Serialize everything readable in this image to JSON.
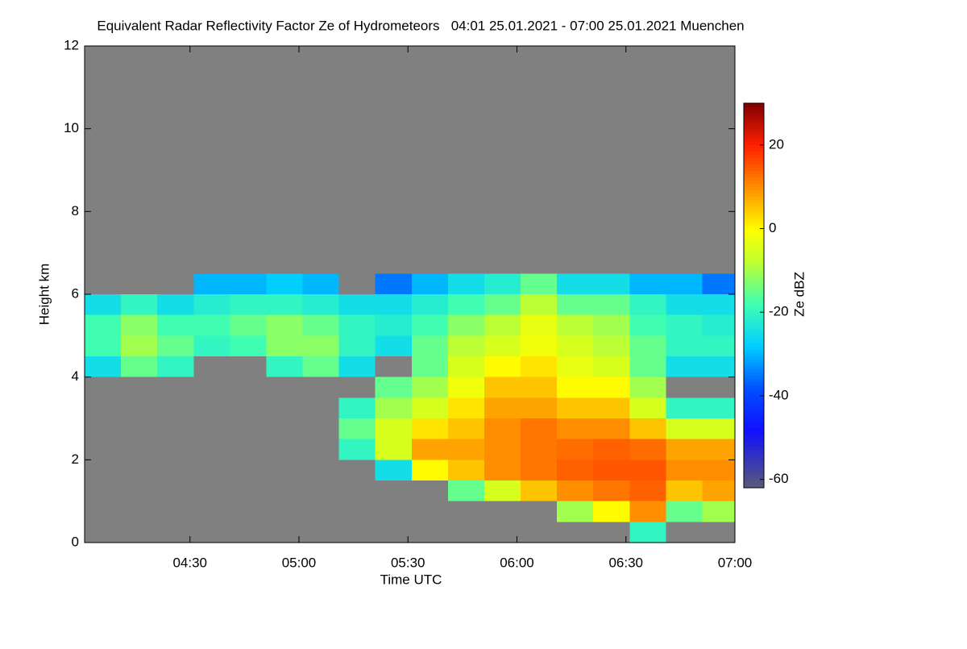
{
  "chart_data": {
    "type": "heatmap",
    "title": "Equivalent Radar Reflectivity Factor Ze of Hydrometeors   04:01 25.01.2021 - 07:00 25.01.2021 Muenchen",
    "x_label": "Time UTC",
    "y_label": "Height km",
    "colorbar_label": "Ze dBZ",
    "background": "#808080",
    "xlim": [
      241,
      420
    ],
    "xticks": [
      {
        "value": 270,
        "label": "04:30"
      },
      {
        "value": 300,
        "label": "05:00"
      },
      {
        "value": 330,
        "label": "05:30"
      },
      {
        "value": 360,
        "label": "06:00"
      },
      {
        "value": 390,
        "label": "06:30"
      },
      {
        "value": 420,
        "label": "07:00"
      }
    ],
    "ylim": [
      0,
      12
    ],
    "yticks": [
      0,
      2,
      4,
      6,
      8,
      10,
      12
    ],
    "zlim": [
      -62,
      30
    ],
    "zticks": [
      -60,
      -40,
      -20,
      0,
      20
    ],
    "x": [
      246,
      256,
      266,
      276,
      286,
      296,
      306,
      316,
      326,
      336,
      346,
      356,
      366,
      376,
      386,
      396,
      406,
      416
    ],
    "y": [
      0.25,
      0.75,
      1.25,
      1.75,
      2.25,
      2.75,
      3.25,
      3.75,
      4.25,
      4.75,
      5.25,
      5.75,
      6.25,
      6.75
    ],
    "z": [
      [
        null,
        null,
        null,
        null,
        null,
        null,
        null,
        null,
        null,
        null,
        null,
        null,
        null,
        null,
        null,
        -20,
        null,
        null
      ],
      [
        null,
        null,
        null,
        null,
        null,
        null,
        null,
        null,
        null,
        null,
        null,
        null,
        null,
        -10,
        0,
        10,
        -15,
        -10
      ],
      [
        null,
        null,
        null,
        null,
        null,
        null,
        null,
        null,
        null,
        null,
        -15,
        -5,
        5,
        10,
        12,
        14,
        5,
        8
      ],
      [
        null,
        null,
        null,
        null,
        null,
        null,
        null,
        null,
        -25,
        0,
        5,
        10,
        12,
        14,
        15,
        15,
        10,
        10
      ],
      [
        null,
        null,
        null,
        null,
        null,
        null,
        null,
        -20,
        -5,
        8,
        8,
        10,
        12,
        13,
        14,
        13,
        8,
        8
      ],
      [
        null,
        null,
        null,
        null,
        null,
        null,
        null,
        -15,
        -5,
        2,
        5,
        10,
        12,
        10,
        10,
        5,
        -5,
        -5
      ],
      [
        null,
        null,
        null,
        null,
        null,
        null,
        null,
        -20,
        -10,
        -5,
        2,
        8,
        8,
        5,
        5,
        -5,
        -20,
        -20
      ],
      [
        null,
        null,
        null,
        null,
        null,
        null,
        null,
        null,
        -15,
        -10,
        -2,
        5,
        5,
        0,
        0,
        -10,
        null,
        null
      ],
      [
        -25,
        -15,
        -20,
        null,
        null,
        -20,
        -15,
        -25,
        null,
        -15,
        -5,
        0,
        2,
        -3,
        -5,
        -15,
        -25,
        -25
      ],
      [
        -18,
        -10,
        -15,
        -20,
        -18,
        -12,
        -12,
        -20,
        -25,
        -15,
        -8,
        -5,
        -2,
        -5,
        -8,
        -15,
        -20,
        -20
      ],
      [
        -18,
        -12,
        -18,
        -18,
        -15,
        -12,
        -15,
        -20,
        -22,
        -18,
        -12,
        -8,
        -3,
        -8,
        -10,
        -18,
        -20,
        -22
      ],
      [
        -25,
        -20,
        -25,
        -22,
        -20,
        -20,
        -22,
        -25,
        -25,
        -22,
        -18,
        -15,
        -8,
        -15,
        -15,
        -20,
        -25,
        -25
      ],
      [
        null,
        null,
        null,
        -30,
        -30,
        -28,
        -30,
        null,
        -35,
        -30,
        -25,
        -22,
        -15,
        -25,
        -25,
        -30,
        -30,
        -35
      ],
      [
        null,
        null,
        null,
        null,
        null,
        null,
        null,
        null,
        null,
        null,
        null,
        null,
        null,
        null,
        null,
        null,
        null,
        null
      ]
    ]
  }
}
